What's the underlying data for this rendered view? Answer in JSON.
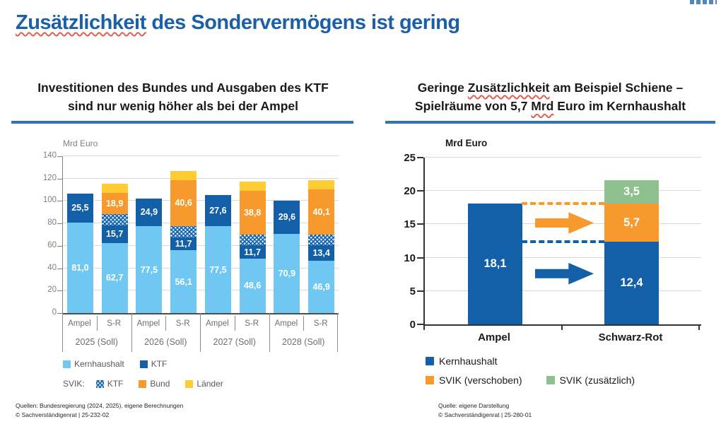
{
  "colors": {
    "brand_blue": "#1A5FA8",
    "rule_blue": "#2E75B6",
    "light_blue": "#70C8F2",
    "dark_blue": "#1460A8",
    "orange": "#F8992E",
    "yellow": "#FFCD33",
    "green": "#8DC08D",
    "grid_grey": "#D9D9D9",
    "axis_grey": "#808080",
    "text_grey": "#6E6E6E",
    "legend_grey": "#595959",
    "spell_red": "#E0614F",
    "near_black": "#1A1A1A"
  },
  "header": {
    "title_word": "Zusätzlichkeit",
    "title_rest": " des Sondervermögens ist gering"
  },
  "panels": {
    "left": {
      "subtitle_line1": "Investitionen des Bundes und Ausgaben des KTF",
      "subtitle_line2": "sind nur wenig höher als bei der Ampel",
      "footer_line1": "Quellen: Bundesregierung (2024, 2025), eigene Berechnungen",
      "footer_line2": "© Sachverständigenrat | 25-232-02"
    },
    "right": {
      "subtitle_line1_pre": "Geringe ",
      "subtitle_line1_wavy": "Zusätzlichkeit",
      "subtitle_line1_post": " am Beispiel Schiene –",
      "subtitle_line2_pre": "Spielräume von 5,7 ",
      "subtitle_line2_wavy": "Mrd",
      "subtitle_line2_post": " Euro im Kernhaushalt",
      "footer_line1": "Quelle: eigene Darstellung",
      "footer_line2": "© Sachverständigenrat | 25-280-01"
    }
  },
  "chart_data": [
    {
      "type": "bar",
      "stacked": true,
      "title": "Investitionen des Bundes und Ausgaben des KTF sind nur wenig höher als bei der Ampel",
      "ylabel": "Mrd Euro",
      "ylim": [
        0,
        140
      ],
      "yticks": [
        0,
        20,
        40,
        60,
        80,
        100,
        120,
        140
      ],
      "grid": true,
      "bar_labels": [
        "Ampel",
        "S-R",
        "Ampel",
        "S-R",
        "Ampel",
        "S-R",
        "Ampel",
        "S-R"
      ],
      "group_labels": [
        "2025 (Soll)",
        "2026 (Soll)",
        "2027 (Soll)",
        "2028 (Soll)"
      ],
      "series": [
        {
          "name": "Kernhaushalt",
          "swatch": "lightblue",
          "labeled": true,
          "values": [
            81.0,
            62.7,
            77.5,
            56.1,
            77.5,
            48.6,
            70.9,
            46.9
          ]
        },
        {
          "name": "KTF",
          "swatch": "darkblue",
          "labeled": true,
          "values": [
            25.5,
            15.7,
            24.9,
            11.7,
            27.6,
            11.7,
            29.6,
            13.4
          ]
        },
        {
          "name": "SVIK: KTF",
          "swatch": "hatch",
          "labeled": false,
          "estimated_from_gridlines": true,
          "values": [
            0,
            10.0,
            0,
            10.0,
            0,
            10.0,
            0,
            10.0
          ]
        },
        {
          "name": "SVIK: Bund",
          "swatch": "orange",
          "labeled": true,
          "values": [
            0,
            18.9,
            0,
            40.6,
            0,
            38.8,
            0,
            40.1
          ]
        },
        {
          "name": "SVIK: Länder",
          "swatch": "yellow",
          "labeled": false,
          "estimated_from_gridlines": true,
          "values": [
            0,
            8.3,
            0,
            8.3,
            0,
            8.3,
            0,
            8.3
          ]
        }
      ],
      "legend": {
        "row1": [
          {
            "swatch": "lightblue",
            "label": "Kernhaushalt"
          },
          {
            "swatch": "darkblue",
            "label": "KTF"
          }
        ],
        "row2_prefix": "SVIK:",
        "row2": [
          {
            "swatch": "hatch",
            "label": "KTF"
          },
          {
            "swatch": "orange",
            "label": "Bund"
          },
          {
            "swatch": "yellow",
            "label": "Länder"
          }
        ]
      }
    },
    {
      "type": "bar",
      "stacked": true,
      "title": "Geringe Zusätzlichkeit am Beispiel Schiene – Spielräume von 5,7 Mrd Euro im Kernhaushalt",
      "ylabel": "Mrd Euro",
      "ylim": [
        0,
        25
      ],
      "yticks": [
        0,
        5,
        10,
        15,
        20,
        25
      ],
      "grid": true,
      "categories": [
        "Ampel",
        "Schwarz-Rot"
      ],
      "series": [
        {
          "name": "Kernhaushalt",
          "swatch": "darkblue",
          "labeled": true,
          "values": [
            18.1,
            12.4
          ]
        },
        {
          "name": "SVIK (verschoben)",
          "swatch": "orange",
          "labeled": true,
          "values": [
            0,
            5.7
          ]
        },
        {
          "name": "SVIK (zusätzlich)",
          "swatch": "green",
          "labeled": true,
          "values": [
            0,
            3.5
          ]
        }
      ],
      "annotations": {
        "dash_lines": [
          {
            "y": 18.1,
            "color": "orange"
          },
          {
            "y": 12.4,
            "color": "darkblue"
          }
        ],
        "arrows": [
          {
            "y_center": 15.2,
            "color": "orange"
          },
          {
            "y_center": 7.6,
            "color": "darkblue"
          }
        ]
      },
      "legend": {
        "row1": [
          {
            "swatch": "darkblue",
            "label": "Kernhaushalt"
          }
        ],
        "row2": [
          {
            "swatch": "orange",
            "label": "SVIK (verschoben)"
          },
          {
            "swatch": "green",
            "label": "SVIK (zusätzlich)"
          }
        ]
      }
    }
  ]
}
